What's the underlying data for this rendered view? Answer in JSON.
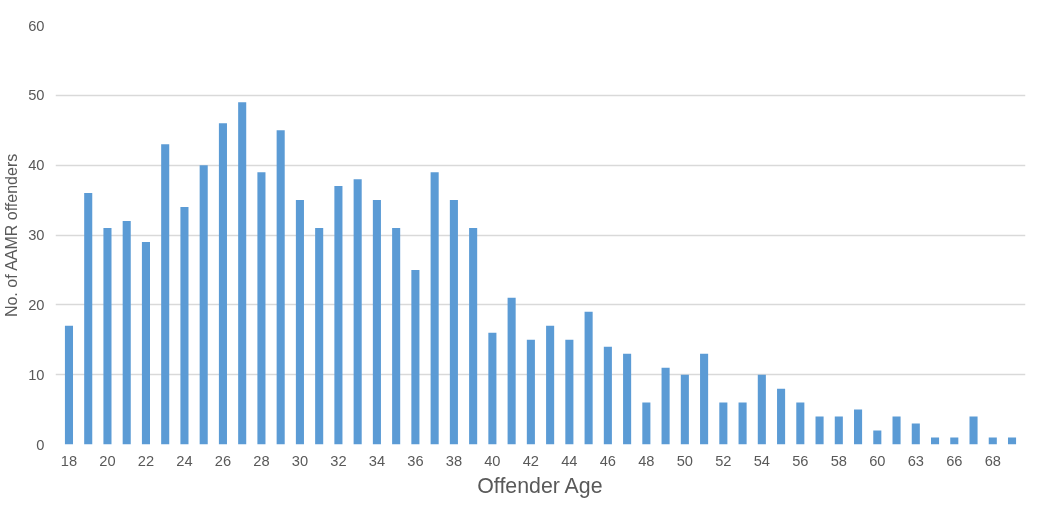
{
  "chart_data": {
    "type": "bar",
    "xlabel": "Offender Age",
    "ylabel": "No. of AAMR offenders",
    "categories": [
      "18",
      null,
      "20",
      null,
      "22",
      null,
      "24",
      null,
      "26",
      null,
      "28",
      null,
      "30",
      null,
      "32",
      null,
      "34",
      null,
      "36",
      null,
      "38",
      null,
      "40",
      null,
      "42",
      null,
      "44",
      null,
      "46",
      null,
      "48",
      null,
      "50",
      null,
      "52",
      null,
      "54",
      null,
      "56",
      null,
      "58",
      null,
      "60",
      null,
      "63",
      null,
      "66",
      null,
      "68",
      null
    ],
    "values": [
      17,
      36,
      31,
      32,
      29,
      43,
      34,
      40,
      46,
      49,
      39,
      45,
      35,
      31,
      37,
      38,
      35,
      31,
      25,
      39,
      35,
      31,
      16,
      21,
      15,
      17,
      15,
      19,
      14,
      13,
      6,
      11,
      10,
      13,
      6,
      6,
      10,
      8,
      6,
      4,
      4,
      5,
      2,
      4,
      3,
      1,
      1,
      4,
      1,
      1
    ],
    "color": "#5b9bd5",
    "ylim": [
      0,
      60
    ],
    "yticks": [
      0,
      10,
      20,
      30,
      40,
      50,
      60
    ],
    "grid": "y"
  }
}
